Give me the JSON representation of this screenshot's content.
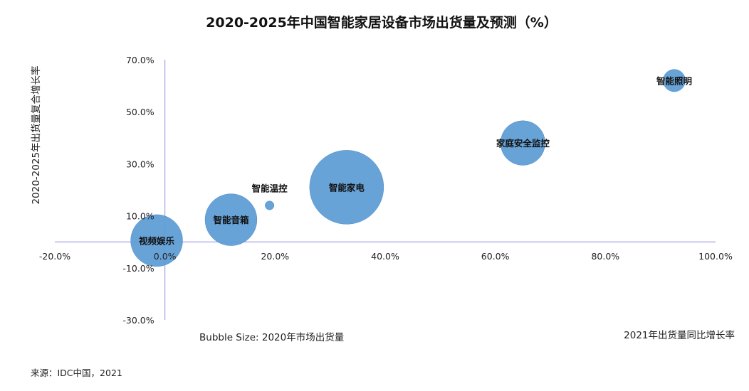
{
  "chart_data": {
    "type": "bubble",
    "title": "2020-2025年中国智能家居设备市场出货量及预测（%）",
    "xlabel": "2021年出货量同比增长率",
    "ylabel": "2020-2025年出货量复合增长率",
    "bubble_size_note": "Bubble Size: 2020年市场出货量",
    "source": "来源：IDC中国，2021",
    "xlim": [
      -20,
      100
    ],
    "ylim": [
      -30,
      70
    ],
    "x_ticks": [
      -20,
      0,
      20,
      40,
      60,
      80,
      100
    ],
    "x_tick_labels": [
      "-20.0%",
      "0.0%",
      "20.0%",
      "40.0%",
      "60.0%",
      "80.0%",
      "100.0%"
    ],
    "y_ticks": [
      -30,
      -10,
      10,
      30,
      50,
      70
    ],
    "y_tick_labels": [
      "-30.0%",
      "-10.0%",
      "10.0%",
      "30.0%",
      "50.0%",
      "70.0%"
    ],
    "bubble_color": "#5b9bd5",
    "axis_color": "#8f8fe0",
    "points": [
      {
        "label": "视频娱乐",
        "x": -1.5,
        "y": 0.5,
        "size": 0.27
      },
      {
        "label": "智能音箱",
        "x": 12,
        "y": 8.5,
        "size": 0.27
      },
      {
        "label": "智能温控",
        "x": 19,
        "y": 14,
        "size": 0.008
      },
      {
        "label": "智能家电",
        "x": 33,
        "y": 21,
        "size": 0.55
      },
      {
        "label": "家庭安全监控",
        "x": 65,
        "y": 38,
        "size": 0.2
      },
      {
        "label": "智能照明",
        "x": 92.5,
        "y": 62,
        "size": 0.05
      }
    ]
  }
}
